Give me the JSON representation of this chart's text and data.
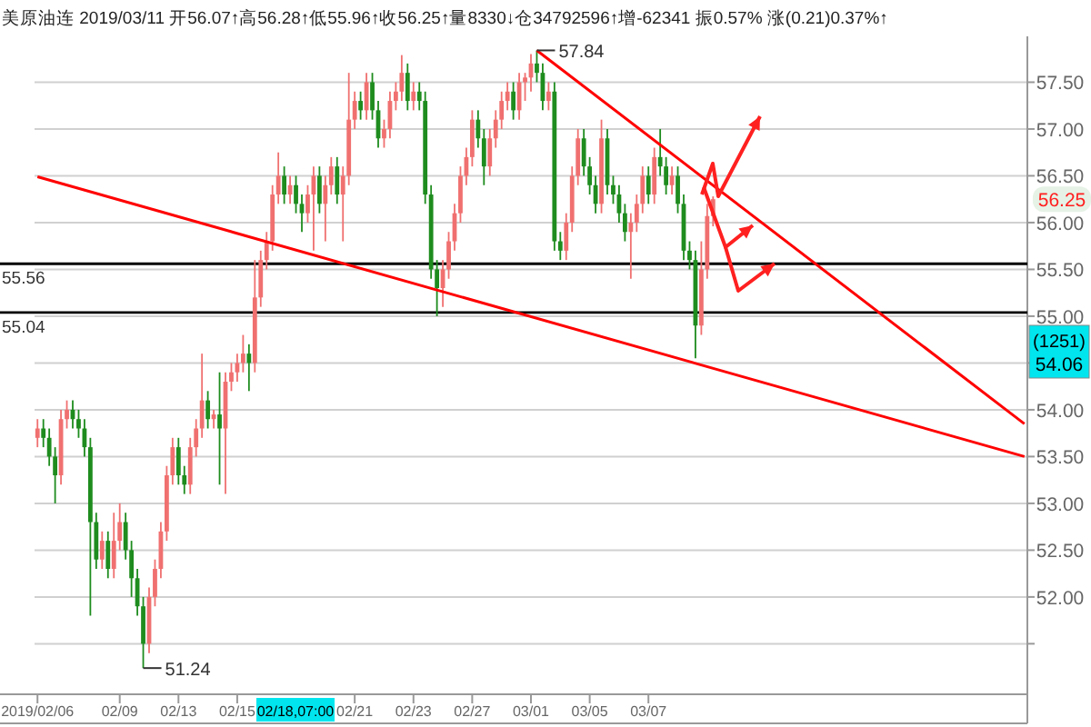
{
  "chart_data": {
    "type": "candlestick",
    "title": "美原油连 2019/03/11 开56.07↑高56.28↑低55.96↑收56.25↑量8330↓仓34792596↑增-62341 振0.57% 涨(0.21)0.37%↑",
    "categories": [
      "2019/02/06",
      null,
      null,
      null,
      null,
      null,
      null,
      null,
      null,
      null,
      null,
      null,
      null,
      null,
      "02/09",
      null,
      null,
      null,
      null,
      null,
      null,
      null,
      null,
      null,
      "02/13",
      null,
      null,
      null,
      null,
      null,
      null,
      null,
      null,
      null,
      "02/15",
      null,
      null,
      null,
      null,
      null,
      null,
      null,
      null,
      null,
      null,
      null,
      null,
      null,
      null,
      null,
      null,
      null,
      null,
      null,
      "02/21",
      null,
      null,
      null,
      null,
      null,
      null,
      null,
      null,
      null,
      "02/23",
      null,
      null,
      null,
      null,
      null,
      null,
      null,
      null,
      null,
      "02/27",
      null,
      null,
      null,
      null,
      null,
      null,
      null,
      null,
      null,
      "03/01",
      null,
      null,
      null,
      null,
      null,
      null,
      null,
      null,
      null,
      "03/05",
      null,
      null,
      null,
      null,
      null,
      null,
      null,
      null,
      null,
      "03/07",
      null,
      null,
      null,
      null,
      null,
      null,
      null,
      null,
      null,
      null,
      null,
      null,
      null,
      null,
      null,
      null,
      null,
      null,
      null,
      null,
      null,
      null,
      null,
      null,
      null,
      null,
      null,
      null,
      null,
      null,
      null,
      null,
      null,
      null,
      null,
      null,
      null,
      null,
      null,
      null,
      null,
      null,
      null,
      null,
      null,
      null,
      null,
      null,
      null,
      null,
      null,
      null,
      null,
      null,
      null,
      null,
      null,
      null,
      null,
      null,
      null,
      null,
      null,
      null
    ],
    "ohlc": [
      [
        53.7,
        53.9,
        53.6,
        53.8
      ],
      [
        53.8,
        53.9,
        53.6,
        53.7
      ],
      [
        53.7,
        53.8,
        53.4,
        53.5
      ],
      [
        53.5,
        53.6,
        53.0,
        53.3
      ],
      [
        53.3,
        54.0,
        53.2,
        53.9
      ],
      [
        53.9,
        54.1,
        53.8,
        54.0
      ],
      [
        54.0,
        54.1,
        53.8,
        53.9
      ],
      [
        53.9,
        54.0,
        53.7,
        53.8
      ],
      [
        53.8,
        53.9,
        53.5,
        53.6
      ],
      [
        53.6,
        53.7,
        51.8,
        52.8
      ],
      [
        52.8,
        52.9,
        52.3,
        52.4
      ],
      [
        52.4,
        52.7,
        52.3,
        52.6
      ],
      [
        52.6,
        52.7,
        52.2,
        52.3
      ],
      [
        52.3,
        52.9,
        52.2,
        52.6
      ],
      [
        52.6,
        53.0,
        52.5,
        52.8
      ],
      [
        52.8,
        52.9,
        52.4,
        52.5
      ],
      [
        52.5,
        52.6,
        52.0,
        52.2
      ],
      [
        52.2,
        52.3,
        51.8,
        51.9
      ],
      [
        51.9,
        52.0,
        51.24,
        51.5
      ],
      [
        51.5,
        52.1,
        51.4,
        52.0
      ],
      [
        52.0,
        52.4,
        51.9,
        52.3
      ],
      [
        52.3,
        52.8,
        52.2,
        52.7
      ],
      [
        52.7,
        53.4,
        52.6,
        53.3
      ],
      [
        53.3,
        53.7,
        53.2,
        53.6
      ],
      [
        53.6,
        53.7,
        53.2,
        53.3
      ],
      [
        53.3,
        53.4,
        53.1,
        53.2
      ],
      [
        53.2,
        53.7,
        53.1,
        53.6
      ],
      [
        53.6,
        53.9,
        53.5,
        53.8
      ],
      [
        53.8,
        54.6,
        53.7,
        54.1
      ],
      [
        54.1,
        54.2,
        53.8,
        53.9
      ],
      [
        53.9,
        54.0,
        53.8,
        53.95
      ],
      [
        53.95,
        54.4,
        53.2,
        53.8
      ],
      [
        53.8,
        54.4,
        53.1,
        54.3
      ],
      [
        54.3,
        54.5,
        54.2,
        54.4
      ],
      [
        54.4,
        54.6,
        54.3,
        54.5
      ],
      [
        54.5,
        54.8,
        54.4,
        54.6
      ],
      [
        54.6,
        54.7,
        54.2,
        54.5
      ],
      [
        54.5,
        55.6,
        54.4,
        55.2
      ],
      [
        55.2,
        55.7,
        55.1,
        55.6
      ],
      [
        55.6,
        55.9,
        55.5,
        55.8
      ],
      [
        55.8,
        56.4,
        55.7,
        56.3
      ],
      [
        56.3,
        56.75,
        56.2,
        56.5
      ],
      [
        56.5,
        56.6,
        56.2,
        56.3
      ],
      [
        56.3,
        56.5,
        56.2,
        56.4
      ],
      [
        56.4,
        56.5,
        56.1,
        56.2
      ],
      [
        56.2,
        56.3,
        55.9,
        56.1
      ],
      [
        56.1,
        56.4,
        56.0,
        56.3
      ],
      [
        56.3,
        56.6,
        55.7,
        56.5
      ],
      [
        56.5,
        56.6,
        56.1,
        56.2
      ],
      [
        56.2,
        56.5,
        55.8,
        56.4
      ],
      [
        56.4,
        56.7,
        56.3,
        56.6
      ],
      [
        56.6,
        56.7,
        56.2,
        56.3
      ],
      [
        56.3,
        56.6,
        55.8,
        56.5
      ],
      [
        56.5,
        57.6,
        56.4,
        57.1
      ],
      [
        57.1,
        57.4,
        57.0,
        57.3
      ],
      [
        57.3,
        57.4,
        57.1,
        57.2
      ],
      [
        57.2,
        57.6,
        57.1,
        57.5
      ],
      [
        57.5,
        57.6,
        57.1,
        57.2
      ],
      [
        57.2,
        57.3,
        56.8,
        56.9
      ],
      [
        56.9,
        57.1,
        56.8,
        57.0
      ],
      [
        57.0,
        57.4,
        56.9,
        57.3
      ],
      [
        57.3,
        57.5,
        57.2,
        57.4
      ],
      [
        57.4,
        57.79,
        57.3,
        57.6
      ],
      [
        57.6,
        57.7,
        57.2,
        57.3
      ],
      [
        57.3,
        57.5,
        57.2,
        57.4
      ],
      [
        57.4,
        57.5,
        57.2,
        57.3
      ],
      [
        57.3,
        57.4,
        56.2,
        56.3
      ],
      [
        56.3,
        56.4,
        55.4,
        55.5
      ],
      [
        55.5,
        55.6,
        55.0,
        55.3
      ],
      [
        55.3,
        55.6,
        55.1,
        55.5
      ],
      [
        55.5,
        55.9,
        55.4,
        55.8
      ],
      [
        55.8,
        56.2,
        55.7,
        56.1
      ],
      [
        56.1,
        56.6,
        56.0,
        56.5
      ],
      [
        56.5,
        56.8,
        56.4,
        56.7
      ],
      [
        56.7,
        57.2,
        56.6,
        57.1
      ],
      [
        57.1,
        57.2,
        56.8,
        56.9
      ],
      [
        56.9,
        57.0,
        56.4,
        56.6
      ],
      [
        56.6,
        57.0,
        56.5,
        56.9
      ],
      [
        56.9,
        57.2,
        56.8,
        57.1
      ],
      [
        57.1,
        57.4,
        57.0,
        57.3
      ],
      [
        57.3,
        57.5,
        57.2,
        57.4
      ],
      [
        57.4,
        57.5,
        57.1,
        57.2
      ],
      [
        57.2,
        57.6,
        57.1,
        57.5
      ],
      [
        57.5,
        57.6,
        57.3,
        57.55
      ],
      [
        57.55,
        57.8,
        57.4,
        57.7
      ],
      [
        57.7,
        57.84,
        57.5,
        57.6
      ],
      [
        57.6,
        57.7,
        57.2,
        57.3
      ],
      [
        57.3,
        57.5,
        57.2,
        57.4
      ],
      [
        57.4,
        57.5,
        55.7,
        55.8
      ],
      [
        55.8,
        55.9,
        55.6,
        55.7
      ],
      [
        55.7,
        56.1,
        55.6,
        56.0
      ],
      [
        56.0,
        56.6,
        55.9,
        56.5
      ],
      [
        56.5,
        57.0,
        56.4,
        56.9
      ],
      [
        56.9,
        57.0,
        56.5,
        56.6
      ],
      [
        56.6,
        56.7,
        56.3,
        56.4
      ],
      [
        56.4,
        56.5,
        56.1,
        56.2
      ],
      [
        56.2,
        57.1,
        56.1,
        56.9
      ],
      [
        56.9,
        57.0,
        56.3,
        56.4
      ],
      [
        56.4,
        56.5,
        56.2,
        56.3
      ],
      [
        56.3,
        56.4,
        56.0,
        56.1
      ],
      [
        56.1,
        56.2,
        55.8,
        55.9
      ],
      [
        55.9,
        56.1,
        55.4,
        56.0
      ],
      [
        56.0,
        56.3,
        55.9,
        56.2
      ],
      [
        56.2,
        56.6,
        56.1,
        56.5
      ],
      [
        56.5,
        56.6,
        56.2,
        56.3
      ],
      [
        56.3,
        56.8,
        56.2,
        56.7
      ],
      [
        56.7,
        57.0,
        56.5,
        56.6
      ],
      [
        56.6,
        56.7,
        56.3,
        56.4
      ],
      [
        56.4,
        56.6,
        56.3,
        56.5
      ],
      [
        56.5,
        56.6,
        56.1,
        56.2
      ],
      [
        56.2,
        56.3,
        55.6,
        55.7
      ],
      [
        55.7,
        55.8,
        55.5,
        55.6
      ],
      [
        55.6,
        55.7,
        54.55,
        54.9
      ],
      [
        54.9,
        55.8,
        54.8,
        55.5
      ],
      [
        55.5,
        56.2,
        55.4,
        56.07
      ],
      [
        56.07,
        56.28,
        55.96,
        56.25
      ],
      null,
      null,
      null,
      null,
      null,
      null,
      null,
      null,
      null,
      null,
      null,
      null,
      null,
      null,
      null,
      null,
      null,
      null,
      null,
      null,
      null,
      null,
      null,
      null,
      null,
      null,
      null,
      null,
      null,
      null,
      null,
      null,
      null,
      null,
      null,
      null,
      null,
      null,
      null,
      null,
      null,
      null,
      null,
      null,
      null,
      null,
      null,
      null,
      null,
      null,
      null,
      null,
      null
    ],
    "colors": [
      "#f07070",
      "#1e8c1e",
      "#1e8c1e",
      "#1e8c1e",
      "#f07070",
      "#f07070",
      "#1e8c1e",
      "#1e8c1e",
      "#1e8c1e",
      "#1e8c1e",
      "#1e8c1e",
      "#f07070",
      "#1e8c1e",
      "#f07070",
      "#f07070",
      "#1e8c1e",
      "#1e8c1e",
      "#1e8c1e",
      "#1e8c1e",
      "#f07070",
      "#f07070",
      "#f07070",
      "#f07070",
      "#f07070",
      "#1e8c1e",
      "#1e8c1e",
      "#f07070",
      "#f07070",
      "#f07070",
      "#1e8c1e",
      "#f07070",
      "#1e8c1e",
      "#f07070",
      "#f07070",
      "#f07070",
      "#f07070",
      "#1e8c1e",
      "#f07070",
      "#f07070",
      "#f07070",
      "#f07070",
      "#f07070",
      "#1e8c1e",
      "#f07070",
      "#1e8c1e",
      "#1e8c1e",
      "#f07070",
      "#f07070",
      "#1e8c1e",
      "#f07070",
      "#f07070",
      "#1e8c1e",
      "#f07070",
      "#f07070",
      "#f07070",
      "#1e8c1e",
      "#f07070",
      "#1e8c1e",
      "#1e8c1e",
      "#f07070",
      "#f07070",
      "#f07070",
      "#f07070",
      "#1e8c1e",
      "#f07070",
      "#1e8c1e",
      "#1e8c1e",
      "#1e8c1e",
      "#1e8c1e",
      "#f07070",
      "#f07070",
      "#f07070",
      "#f07070",
      "#f07070",
      "#f07070",
      "#1e8c1e",
      "#1e8c1e",
      "#f07070",
      "#f07070",
      "#f07070",
      "#f07070",
      "#1e8c1e",
      "#f07070",
      "#f07070",
      "#f07070",
      "#1e8c1e",
      "#1e8c1e",
      "#f07070",
      "#1e8c1e",
      "#1e8c1e",
      "#f07070",
      "#f07070",
      "#f07070",
      "#1e8c1e",
      "#1e8c1e",
      "#1e8c1e",
      "#f07070",
      "#1e8c1e",
      "#1e8c1e",
      "#1e8c1e",
      "#1e8c1e",
      "#f07070",
      "#f07070",
      "#f07070",
      "#1e8c1e",
      "#f07070",
      "#1e8c1e",
      "#1e8c1e",
      "#f07070",
      "#1e8c1e",
      "#1e8c1e",
      "#1e8c1e",
      "#1e8c1e",
      "#f07070",
      "#f07070",
      "#f07070",
      null,
      null,
      null,
      null,
      null,
      null,
      null,
      null,
      null,
      null,
      null,
      null,
      null,
      null,
      null,
      null,
      null,
      null,
      null,
      null,
      null,
      null,
      null,
      null,
      null,
      null,
      null,
      null,
      null,
      null,
      null,
      null,
      null,
      null,
      null,
      null,
      null,
      null,
      null,
      null,
      null,
      null,
      null,
      null,
      null,
      null,
      null,
      null,
      null,
      null,
      null,
      null,
      null
    ],
    "series": [
      {
        "type": "line",
        "color": "#ff0000",
        "values": [
          56.49,
          null,
          null,
          null,
          null,
          null,
          null,
          null,
          null,
          null,
          null,
          null,
          null,
          null,
          null,
          null,
          null,
          null,
          null,
          null,
          null,
          null,
          null,
          null,
          null,
          null,
          null,
          null,
          null,
          null,
          null,
          null,
          null,
          null,
          null,
          null,
          null,
          null,
          null,
          null,
          null,
          null,
          null,
          null,
          null,
          null,
          null,
          null,
          null,
          null,
          null,
          null,
          null,
          null,
          null,
          null,
          null,
          null,
          null,
          null,
          null,
          null,
          null,
          null,
          null,
          null,
          null,
          null,
          null,
          null,
          null,
          null,
          null,
          null,
          null,
          null,
          null,
          null,
          null,
          null,
          null,
          null,
          null,
          null,
          null,
          null,
          null,
          null,
          null,
          null,
          null,
          null,
          null,
          null,
          null,
          null,
          null,
          null,
          null,
          null,
          null,
          null,
          null,
          null,
          null,
          null,
          null,
          null,
          null,
          null,
          null,
          null,
          null,
          null,
          null,
          null,
          null,
          null,
          null,
          null,
          null,
          null,
          null,
          null,
          null,
          null,
          null,
          null,
          null,
          null,
          null,
          null,
          null,
          null,
          null,
          null,
          null,
          null,
          null,
          null,
          null,
          null,
          null,
          null,
          null,
          null,
          null,
          null,
          null,
          null,
          null,
          null,
          null,
          null,
          null,
          null,
          null,
          null,
          null,
          null,
          null,
          null,
          null,
          null,
          null,
          null,
          null,
          null,
          53.5
        ]
      },
      {
        "type": "line",
        "color": "#ff0000",
        "values": [
          null,
          null,
          null,
          null,
          null,
          null,
          null,
          null,
          null,
          null,
          null,
          null,
          null,
          null,
          null,
          null,
          null,
          null,
          null,
          null,
          null,
          null,
          null,
          null,
          null,
          null,
          null,
          null,
          null,
          null,
          null,
          null,
          null,
          null,
          null,
          null,
          null,
          null,
          null,
          null,
          null,
          null,
          null,
          null,
          null,
          null,
          null,
          null,
          null,
          null,
          null,
          null,
          null,
          null,
          null,
          null,
          null,
          null,
          null,
          null,
          null,
          null,
          null,
          null,
          null,
          null,
          null,
          null,
          null,
          null,
          null,
          null,
          null,
          null,
          null,
          null,
          null,
          null,
          null,
          null,
          null,
          null,
          null,
          null,
          null,
          57.84,
          null,
          null,
          null,
          null,
          null,
          null,
          null,
          null,
          null,
          null,
          null,
          null,
          null,
          null,
          null,
          null,
          null,
          null,
          null,
          null,
          null,
          null,
          null,
          null,
          null,
          null,
          null,
          null,
          null,
          null,
          null,
          null,
          null,
          null,
          null,
          null,
          null,
          null,
          null,
          null,
          null,
          null,
          null,
          null,
          null,
          null,
          null,
          null,
          null,
          null,
          null,
          null,
          null,
          null,
          null,
          null,
          null,
          null,
          null,
          null,
          null,
          null,
          null,
          null,
          null,
          null,
          null,
          null,
          null,
          null,
          null,
          null,
          null,
          null,
          null,
          null,
          null,
          null,
          null,
          null,
          null,
          null,
          53.85
        ]
      }
    ],
    "ylim": [
      50.96,
      57.99
    ],
    "yticks": [
      {
        "value": 51.5,
        "label": null
      },
      {
        "value": 52,
        "label": "52.00"
      },
      {
        "value": 52.5,
        "label": "52.50"
      },
      {
        "value": 53,
        "label": "53.00"
      },
      {
        "value": 53.5,
        "label": "53.50"
      },
      {
        "value": 54,
        "label": "54.00"
      },
      {
        "value": 54.5,
        "label": null
      },
      {
        "value": 55,
        "label": "55.00"
      },
      {
        "value": 55.5,
        "label": "55.50"
      },
      {
        "value": 56,
        "label": "56.00"
      },
      {
        "value": 56.5,
        "label": "56.50"
      },
      {
        "value": 57,
        "label": "57.00"
      },
      {
        "value": 57.5,
        "label": "57.50"
      }
    ],
    "grid": "y",
    "ref_lines": [
      {
        "axis": "y",
        "value": 55.56,
        "label": "55.56",
        "color": "#000000"
      },
      {
        "axis": "y",
        "value": 55.04,
        "label": "55.04",
        "color": "#000000"
      }
    ],
    "annotations": [
      "57.84",
      "51.24",
      "56.25",
      "02/18,07:00",
      "(1251)",
      "54.06"
    ]
  }
}
